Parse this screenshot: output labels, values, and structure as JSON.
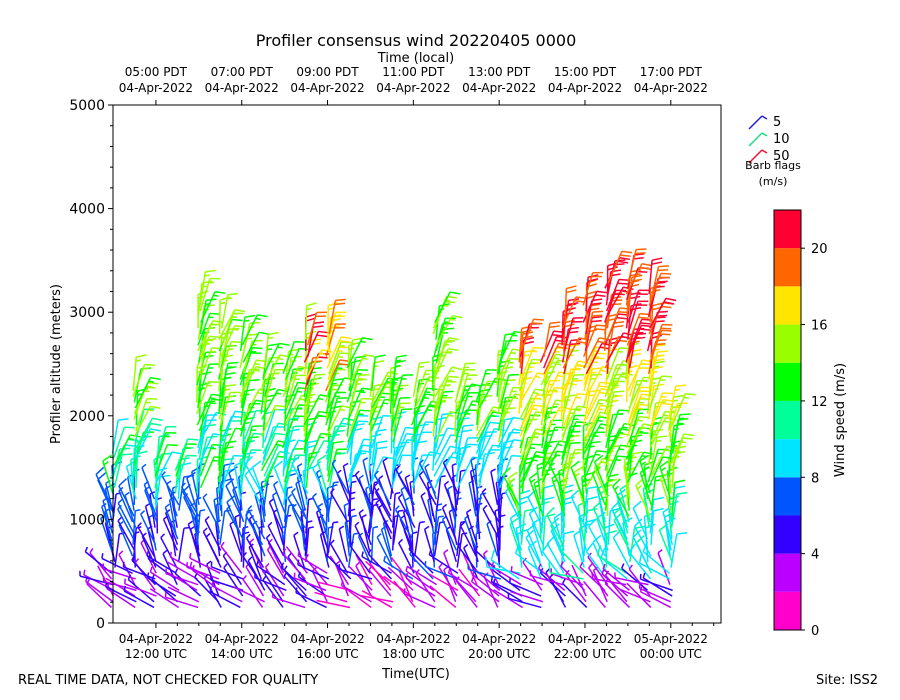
{
  "chart_data": {
    "type": "wind-barb-profile",
    "title": "Profiler consensus wind 20220405 0000",
    "top_axis_label": "Time (local)",
    "xlabel": "Time(UTC)",
    "ylabel": "Profiler altitude (meters)",
    "ylim": [
      0,
      5000
    ],
    "xlim_hours_utc": [
      11.0,
      25.17
    ],
    "y_ticks": [
      0,
      1000,
      2000,
      3000,
      4000,
      5000
    ],
    "y_tick_labels": [
      "0",
      "1000",
      "2000",
      "3000",
      "4000",
      "5000"
    ],
    "x_ticks_utc": [
      {
        "hour": 12,
        "line1": "04-Apr-2022",
        "line2": "12:00 UTC"
      },
      {
        "hour": 14,
        "line1": "04-Apr-2022",
        "line2": "14:00 UTC"
      },
      {
        "hour": 16,
        "line1": "04-Apr-2022",
        "line2": "16:00 UTC"
      },
      {
        "hour": 18,
        "line1": "04-Apr-2022",
        "line2": "18:00 UTC"
      },
      {
        "hour": 20,
        "line1": "04-Apr-2022",
        "line2": "20:00 UTC"
      },
      {
        "hour": 22,
        "line1": "04-Apr-2022",
        "line2": "22:00 UTC"
      },
      {
        "hour": 24,
        "line1": "05-Apr-2022",
        "line2": "00:00 UTC"
      }
    ],
    "x_ticks_local": [
      {
        "hour": 12,
        "line1": "05:00 PDT",
        "line2": "04-Apr-2022"
      },
      {
        "hour": 14,
        "line1": "07:00 PDT",
        "line2": "04-Apr-2022"
      },
      {
        "hour": 16,
        "line1": "09:00 PDT",
        "line2": "04-Apr-2022"
      },
      {
        "hour": 18,
        "line1": "11:00 PDT",
        "line2": "04-Apr-2022"
      },
      {
        "hour": 20,
        "line1": "13:00 PDT",
        "line2": "04-Apr-2022"
      },
      {
        "hour": 22,
        "line1": "15:00 PDT",
        "line2": "04-Apr-2022"
      },
      {
        "hour": 24,
        "line1": "17:00 PDT",
        "line2": "04-Apr-2022"
      }
    ],
    "legend": {
      "entries": [
        {
          "label": "5",
          "color": "#2222dd"
        },
        {
          "label": "10",
          "color": "#22dd88"
        },
        {
          "label": "50",
          "color": "#ee1133"
        }
      ],
      "title_line1": "Barb flags",
      "title_line2": "(m/s)"
    },
    "colorbar": {
      "label": "Wind speed (m/s)",
      "vmin": 0,
      "vmax": 22,
      "ticks": [
        0,
        4,
        8,
        12,
        16,
        20
      ],
      "tick_labels": [
        "0",
        "4",
        "8",
        "12",
        "16",
        "20"
      ],
      "colors": [
        "#ff00cc",
        "#bb00ff",
        "#3300ff",
        "#0055ff",
        "#00e5ff",
        "#00ff99",
        "#00ff00",
        "#99ff00",
        "#ffe600",
        "#ff6600",
        "#ff0033"
      ]
    },
    "profiles": [
      {
        "hour": 11.0,
        "top": 1650,
        "mode": "low"
      },
      {
        "hour": 11.5,
        "top": 2260,
        "mode": "low"
      },
      {
        "hour": 12.0,
        "top": 1600,
        "mode": "low"
      },
      {
        "hour": 12.5,
        "top": 1480,
        "mode": "low"
      },
      {
        "hour": 13.0,
        "top": 3100,
        "mode": "low"
      },
      {
        "hour": 13.5,
        "top": 2850,
        "mode": "low"
      },
      {
        "hour": 14.0,
        "top": 2700,
        "mode": "low"
      },
      {
        "hour": 14.5,
        "top": 2500,
        "mode": "low"
      },
      {
        "hour": 15.0,
        "top": 2450,
        "mode": "low"
      },
      {
        "hour": 15.5,
        "top": 2750,
        "mode": "low"
      },
      {
        "hour": 16.0,
        "top": 2800,
        "mode": "low"
      },
      {
        "hour": 16.5,
        "top": 2500,
        "mode": "mid"
      },
      {
        "hour": 17.0,
        "top": 2250,
        "mode": "mid"
      },
      {
        "hour": 17.5,
        "top": 2250,
        "mode": "mid"
      },
      {
        "hour": 18.0,
        "top": 2200,
        "mode": "mid"
      },
      {
        "hour": 18.5,
        "top": 2900,
        "mode": "mid"
      },
      {
        "hour": 19.0,
        "top": 2200,
        "mode": "mid"
      },
      {
        "hour": 19.5,
        "top": 2150,
        "mode": "mid"
      },
      {
        "hour": 20.0,
        "top": 2550,
        "mode": "mid"
      },
      {
        "hour": 20.5,
        "top": 2650,
        "mode": "high"
      },
      {
        "hour": 21.0,
        "top": 2600,
        "mode": "high"
      },
      {
        "hour": 21.5,
        "top": 2950,
        "mode": "high"
      },
      {
        "hour": 22.0,
        "top": 3100,
        "mode": "high"
      },
      {
        "hour": 22.5,
        "top": 3300,
        "mode": "high"
      },
      {
        "hour": 23.0,
        "top": 3300,
        "mode": "high"
      },
      {
        "hour": 23.5,
        "top": 3200,
        "mode": "high"
      },
      {
        "hour": 24.0,
        "top": 2000,
        "mode": "high"
      }
    ]
  },
  "footer": {
    "left": "REAL TIME DATA, NOT CHECKED FOR QUALITY",
    "right": "Site: ISS2"
  }
}
